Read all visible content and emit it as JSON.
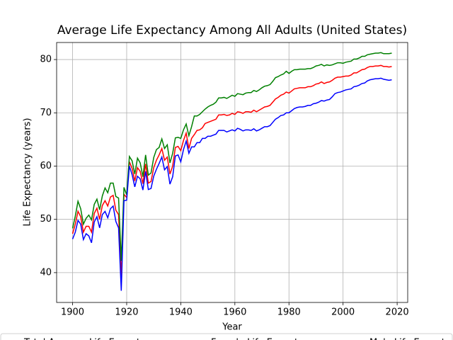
{
  "chart_data": {
    "type": "line",
    "title": "Average Life Expectancy Among All Adults (United States)",
    "x_label": "Year",
    "y_label": "Life Expectancy (years)",
    "x": [
      1900,
      1901,
      1902,
      1903,
      1904,
      1905,
      1906,
      1907,
      1908,
      1909,
      1910,
      1911,
      1912,
      1913,
      1914,
      1915,
      1916,
      1917,
      1918,
      1919,
      1920,
      1921,
      1922,
      1923,
      1924,
      1925,
      1926,
      1927,
      1928,
      1929,
      1930,
      1931,
      1932,
      1933,
      1934,
      1935,
      1936,
      1937,
      1938,
      1939,
      1940,
      1941,
      1942,
      1943,
      1944,
      1945,
      1946,
      1947,
      1948,
      1949,
      1950,
      1951,
      1952,
      1953,
      1954,
      1955,
      1956,
      1957,
      1958,
      1959,
      1960,
      1961,
      1962,
      1963,
      1964,
      1965,
      1966,
      1967,
      1968,
      1969,
      1970,
      1971,
      1972,
      1973,
      1974,
      1975,
      1976,
      1977,
      1978,
      1979,
      1980,
      1981,
      1982,
      1983,
      1984,
      1985,
      1986,
      1987,
      1988,
      1989,
      1990,
      1991,
      1992,
      1993,
      1994,
      1995,
      1996,
      1997,
      1998,
      1999,
      2000,
      2001,
      2002,
      2003,
      2004,
      2005,
      2006,
      2007,
      2008,
      2009,
      2010,
      2011,
      2012,
      2013,
      2014,
      2015,
      2016,
      2017,
      2018
    ],
    "series": [
      {
        "name": "Total Average Life Expectancy",
        "color": "#ff0000",
        "values": [
          47.3,
          49.1,
          51.5,
          50.5,
          47.6,
          48.7,
          48.7,
          47.6,
          51.1,
          52.1,
          50.0,
          52.6,
          53.5,
          52.5,
          54.2,
          54.5,
          51.7,
          50.9,
          39.1,
          54.7,
          54.1,
          60.8,
          59.6,
          57.2,
          59.7,
          59.0,
          56.7,
          60.4,
          56.8,
          57.1,
          59.7,
          61.1,
          62.1,
          63.3,
          61.1,
          61.7,
          58.5,
          60.0,
          63.5,
          63.7,
          62.9,
          64.8,
          66.2,
          63.3,
          65.2,
          65.9,
          66.7,
          66.8,
          67.2,
          68.0,
          68.2,
          68.4,
          68.6,
          68.8,
          69.6,
          69.6,
          69.7,
          69.5,
          69.6,
          69.9,
          69.7,
          70.2,
          70.1,
          69.9,
          70.2,
          70.2,
          70.1,
          70.5,
          70.2,
          70.5,
          70.8,
          71.1,
          71.2,
          71.4,
          72.0,
          72.6,
          72.9,
          73.3,
          73.5,
          73.9,
          73.7,
          74.1,
          74.5,
          74.6,
          74.7,
          74.7,
          74.7,
          74.9,
          74.9,
          75.1,
          75.4,
          75.5,
          75.8,
          75.5,
          75.7,
          75.8,
          76.1,
          76.5,
          76.7,
          76.7,
          76.8,
          76.9,
          76.9,
          77.1,
          77.5,
          77.5,
          77.8,
          78.1,
          78.2,
          78.5,
          78.7,
          78.7,
          78.8,
          78.8,
          78.9,
          78.7,
          78.7,
          78.6,
          78.7
        ]
      },
      {
        "name": "Female Life Expectancy",
        "color": "#008000",
        "values": [
          48.3,
          50.6,
          53.4,
          52.0,
          49.1,
          50.2,
          50.8,
          49.9,
          52.8,
          53.8,
          51.8,
          54.4,
          55.9,
          55.0,
          56.8,
          56.8,
          54.3,
          54.0,
          42.2,
          56.0,
          54.6,
          61.8,
          61.0,
          58.5,
          61.5,
          60.6,
          58.0,
          62.1,
          58.3,
          58.7,
          61.6,
          63.1,
          63.5,
          65.1,
          63.3,
          64.0,
          60.6,
          62.4,
          65.3,
          65.4,
          65.2,
          66.8,
          67.9,
          65.7,
          67.4,
          69.4,
          69.4,
          69.7,
          70.2,
          70.7,
          71.1,
          71.4,
          71.6,
          72.0,
          72.8,
          72.8,
          72.9,
          72.7,
          73.0,
          73.3,
          73.1,
          73.6,
          73.5,
          73.4,
          73.7,
          73.8,
          73.8,
          74.2,
          74.0,
          74.3,
          74.7,
          75.0,
          75.1,
          75.3,
          75.9,
          76.6,
          76.8,
          77.1,
          77.3,
          77.8,
          77.4,
          77.8,
          78.1,
          78.1,
          78.2,
          78.2,
          78.2,
          78.3,
          78.3,
          78.5,
          78.8,
          78.9,
          79.1,
          78.8,
          79.0,
          78.9,
          79.0,
          79.2,
          79.4,
          79.4,
          79.3,
          79.5,
          79.6,
          79.7,
          80.1,
          80.1,
          80.3,
          80.6,
          80.6,
          80.9,
          81.0,
          81.1,
          81.2,
          81.2,
          81.3,
          81.1,
          81.1,
          81.1,
          81.2
        ]
      },
      {
        "name": "Male Life Expectancy",
        "color": "#0000ff",
        "values": [
          46.3,
          47.6,
          49.8,
          49.1,
          46.2,
          47.3,
          46.9,
          45.6,
          49.5,
          50.5,
          48.4,
          50.9,
          51.5,
          50.3,
          52.0,
          52.5,
          49.6,
          48.4,
          36.6,
          53.5,
          53.6,
          60.0,
          58.4,
          56.1,
          58.1,
          57.6,
          55.5,
          59.0,
          55.6,
          55.8,
          58.1,
          59.4,
          60.5,
          61.7,
          59.3,
          59.9,
          56.6,
          58.0,
          61.9,
          62.1,
          60.8,
          63.1,
          64.7,
          62.4,
          63.6,
          63.6,
          64.4,
          64.4,
          65.2,
          65.2,
          65.6,
          65.6,
          65.8,
          66.0,
          66.7,
          66.7,
          66.7,
          66.4,
          66.6,
          66.8,
          66.6,
          67.1,
          66.9,
          66.6,
          66.8,
          66.8,
          66.7,
          67.0,
          66.6,
          66.8,
          67.1,
          67.4,
          67.4,
          67.6,
          68.2,
          68.8,
          69.1,
          69.5,
          69.6,
          70.0,
          70.0,
          70.4,
          70.8,
          71.0,
          71.1,
          71.1,
          71.2,
          71.4,
          71.4,
          71.7,
          71.8,
          72.0,
          72.3,
          72.2,
          72.4,
          72.5,
          73.0,
          73.6,
          73.8,
          73.9,
          74.1,
          74.3,
          74.4,
          74.5,
          74.9,
          75.0,
          75.2,
          75.5,
          75.6,
          76.0,
          76.2,
          76.3,
          76.4,
          76.4,
          76.5,
          76.3,
          76.2,
          76.1,
          76.2
        ]
      }
    ],
    "xlim": [
      1894.1,
      2023.9
    ],
    "xticks": [
      1900,
      1920,
      1940,
      1960,
      1980,
      2000,
      2020
    ],
    "ylim": [
      34.4,
      83.2
    ],
    "yticks": [
      40,
      50,
      60,
      70,
      80
    ],
    "grid": true,
    "legend": "bottom"
  }
}
